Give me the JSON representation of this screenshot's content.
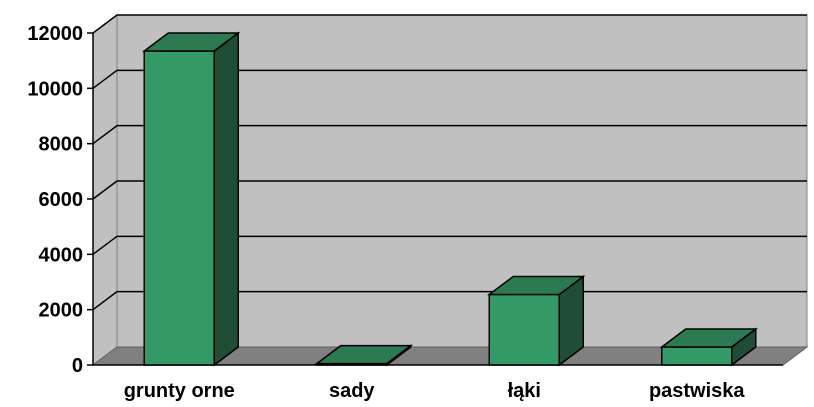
{
  "chart_data": {
    "type": "bar",
    "categories": [
      "grunty orne",
      "sady",
      "łąki",
      "pastwiska"
    ],
    "values": [
      11350,
      50,
      2550,
      650
    ],
    "ylim": [
      0,
      12000
    ],
    "yticks": [
      "0",
      "2000",
      "4000",
      "6000",
      "8000",
      "10000",
      "12000"
    ],
    "grid": true,
    "style": "3d-column",
    "colors": {
      "bar_front": "#339966",
      "bar_side": "#1f4d36",
      "bar_top": "#2b7a52",
      "wall": "#c0c0c0",
      "floor": "#808080",
      "gridline": "#000000"
    }
  }
}
